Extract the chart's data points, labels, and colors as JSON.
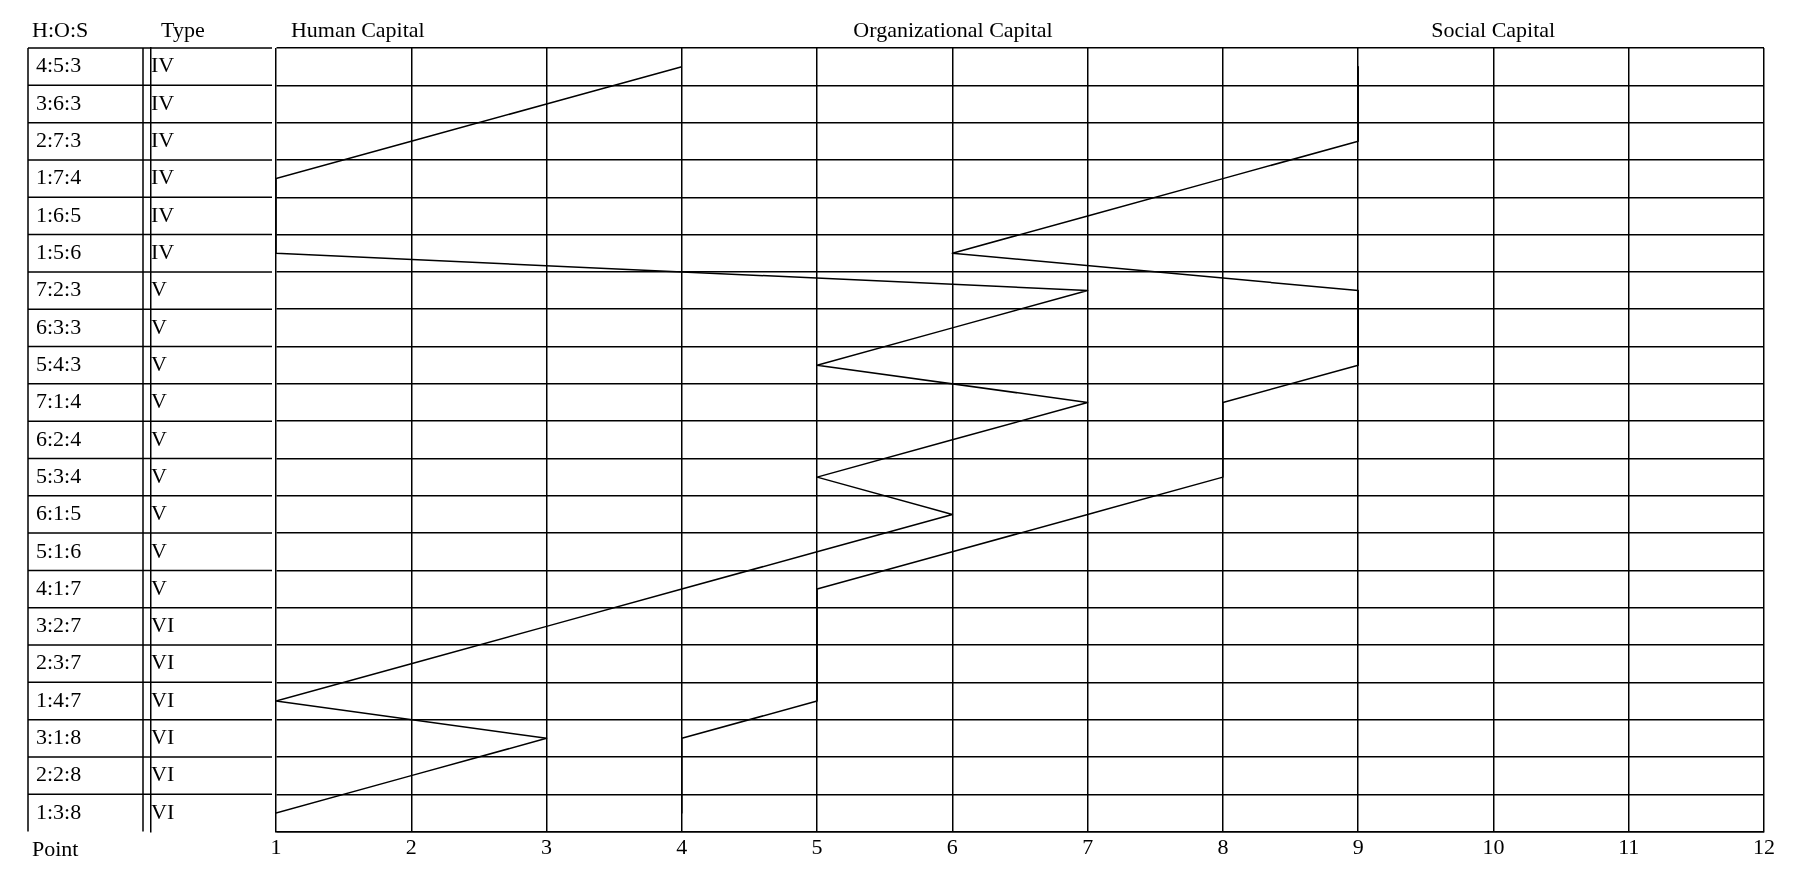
{
  "chart_data": {
    "type": "line",
    "orientation": "horizontal",
    "ylabel": "H:O:S",
    "y2label": "Type",
    "xlabel": "Point",
    "annotations": [
      "Human Capital",
      "Organizational Capital",
      "Social Capital"
    ],
    "categories": [
      "4:5:3",
      "3:6:3",
      "2:7:3",
      "1:7:4",
      "1:6:5",
      "1:5:6",
      "7:2:3",
      "6:3:3",
      "5:4:3",
      "7:1:4",
      "6:2:4",
      "5:3:4",
      "6:1:5",
      "5:1:6",
      "4:1:7",
      "3:2:7",
      "2:3:7",
      "1:4:7",
      "3:1:8",
      "2:2:8",
      "1:3:8"
    ],
    "y2_categories": [
      "IV",
      "IV",
      "IV",
      "IV",
      "IV",
      "IV",
      "V",
      "V",
      "V",
      "V",
      "V",
      "V",
      "V",
      "V",
      "V",
      "VI",
      "VI",
      "VI",
      "VI",
      "VI",
      "VI"
    ],
    "series": [
      {
        "color": "#000000",
        "values": [
          4,
          3,
          2,
          1,
          1,
          1,
          7,
          6,
          5,
          7,
          6,
          5,
          6,
          5,
          4,
          3,
          2,
          1,
          3,
          2,
          1
        ]
      },
      {
        "color": "#000000",
        "values": [
          9,
          9,
          9,
          8,
          7,
          6,
          9,
          9,
          9,
          8,
          8,
          8,
          7,
          6,
          5,
          5,
          5,
          5,
          4,
          4,
          4
        ]
      }
    ],
    "xlim": [
      1,
      12
    ],
    "xticks": [
      1,
      2,
      3,
      4,
      5,
      6,
      7,
      8,
      9,
      10,
      11,
      12
    ],
    "grid": true,
    "legend": false,
    "marker": "none",
    "line_style": "solid"
  }
}
